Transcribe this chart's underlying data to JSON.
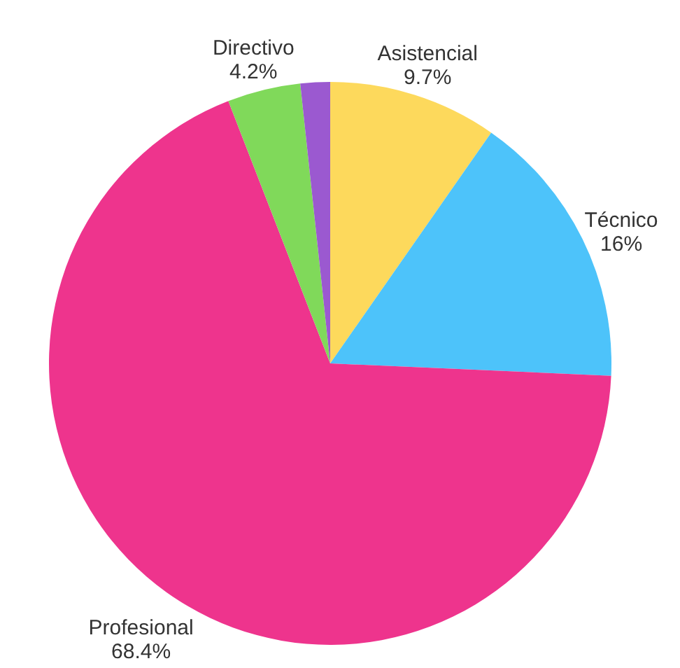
{
  "chart_data": {
    "type": "pie",
    "categories": [
      "Asistencial",
      "Técnico",
      "Profesional",
      "Directivo",
      null
    ],
    "values": [
      9.7,
      16,
      68.4,
      4.2,
      1.7
    ],
    "colors": [
      "#fdd95c",
      "#4dc3fa",
      "#ee348d",
      "#80d95a",
      "#9b59d0"
    ],
    "value_labels": [
      "9.7%",
      "16%",
      "68.4%",
      "4.2%",
      null
    ],
    "legend": false
  }
}
